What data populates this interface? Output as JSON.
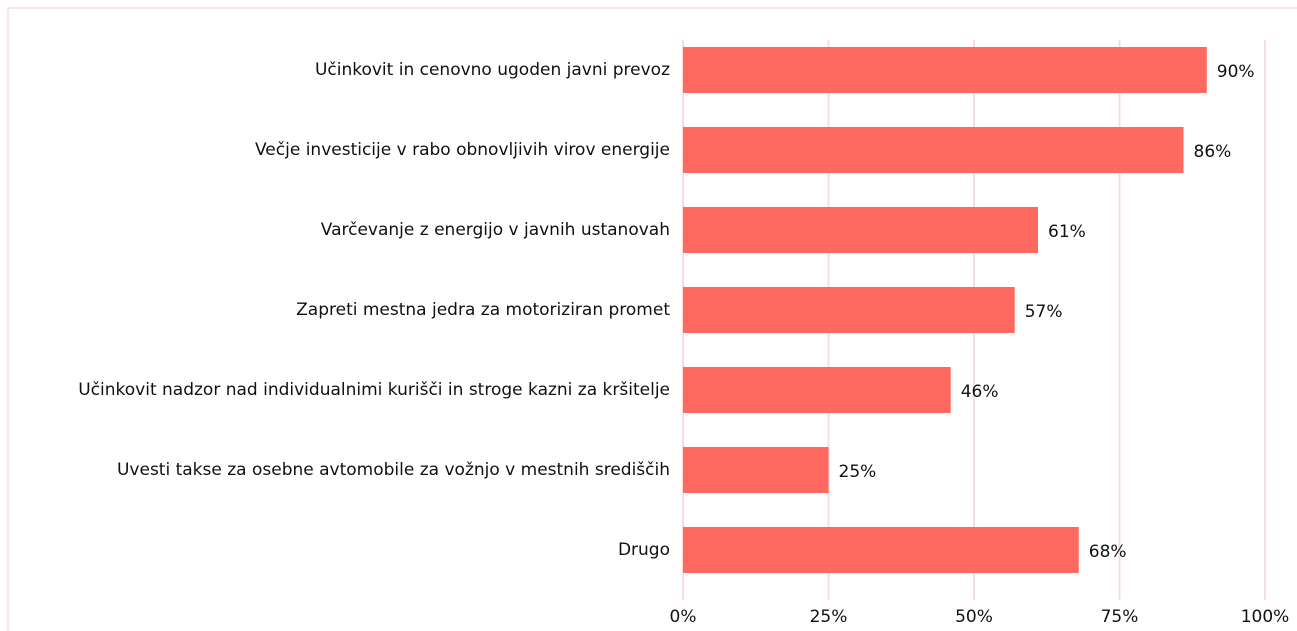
{
  "chart_data": {
    "type": "barh",
    "categories": [
      "Učinkovit in cenovno ugoden javni prevoz",
      "Večje investicije v rabo obnovljivih virov energije",
      "Varčevanje z energijo v javnih ustanovah",
      "Zapreti mestna jedra za motoriziran promet",
      "Učinkovit nadzor nad individualnimi kurišči in stroge kazni za kršitelje",
      "Uvesti takse za osebne avtomobile za vožnjo v mestnih središčih",
      "Drugo"
    ],
    "values": [
      90,
      86,
      61,
      57,
      46,
      25,
      68
    ],
    "value_labels": [
      "90%",
      "86%",
      "61%",
      "57%",
      "46%",
      "25%",
      "68%"
    ],
    "color": "#ff6961",
    "xlim": [
      0,
      100
    ],
    "xticks": [
      {
        "value": 0,
        "label": "0%"
      },
      {
        "value": 25,
        "label": "25%"
      },
      {
        "value": 50,
        "label": "50%"
      },
      {
        "value": 75,
        "label": "75%"
      },
      {
        "value": 100,
        "label": "100%"
      }
    ],
    "grid": true
  }
}
